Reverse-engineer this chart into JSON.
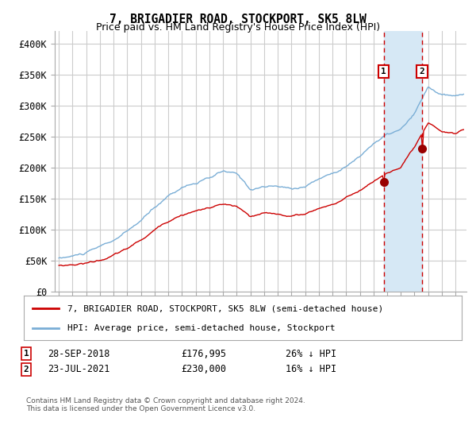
{
  "title": "7, BRIGADIER ROAD, STOCKPORT, SK5 8LW",
  "subtitle": "Price paid vs. HM Land Registry's House Price Index (HPI)",
  "ylabel_ticks": [
    "£0",
    "£50K",
    "£100K",
    "£150K",
    "£200K",
    "£250K",
    "£300K",
    "£350K",
    "£400K"
  ],
  "ylim": [
    0,
    420000
  ],
  "xlim_start": 1994.7,
  "xlim_end": 2024.8,
  "sale1_x": 2018.747,
  "sale1_y": 176995,
  "sale2_x": 2021.554,
  "sale2_y": 230000,
  "sale1_label": "28-SEP-2018",
  "sale1_price": "£176,995",
  "sale1_hpi": "26% ↓ HPI",
  "sale2_label": "23-JUL-2021",
  "sale2_price": "£230,000",
  "sale2_hpi": "16% ↓ HPI",
  "line1_label": "7, BRIGADIER ROAD, STOCKPORT, SK5 8LW (semi-detached house)",
  "line2_label": "HPI: Average price, semi-detached house, Stockport",
  "footer": "Contains HM Land Registry data © Crown copyright and database right 2024.\nThis data is licensed under the Open Government Licence v3.0.",
  "line1_color": "#cc0000",
  "line2_color": "#7aaed6",
  "shade_color": "#d6e8f5",
  "vline_color": "#cc0000",
  "marker_color": "#990000",
  "background_color": "#ffffff",
  "grid_color": "#cccccc"
}
